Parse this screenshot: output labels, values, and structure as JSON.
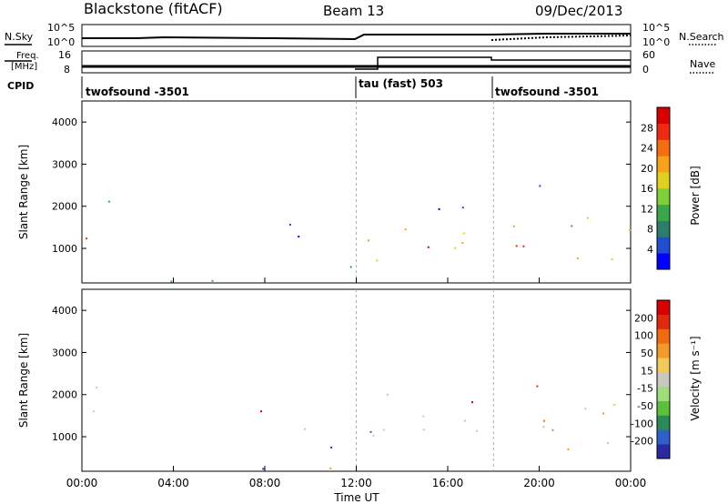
{
  "header": {
    "station": "Blackstone (fitACF)",
    "beam": "Beam 13",
    "date": "09/Dec/2013"
  },
  "noise_panel": {
    "left_label": "N.Sky",
    "right_label": "N.Search",
    "left_ticks": [
      "10^5",
      "10^0"
    ],
    "right_ticks": [
      "10^5",
      "10^0"
    ],
    "right_legend_line": "solid",
    "search_legend_line": "dotted"
  },
  "freq_panel": {
    "left_label_1": "Freq.",
    "left_label_2": "[MHz]",
    "right_label": "Nave",
    "left_ticks": [
      "16",
      "8"
    ],
    "right_ticks": [
      "60",
      "0"
    ],
    "nave_values": [
      {
        "from": "00:00",
        "to": "12:00",
        "nave": 20
      },
      {
        "from": "12:00",
        "to": "18:00",
        "nave": 45
      },
      {
        "from": "18:00",
        "to": "24:00",
        "nave": 35
      }
    ]
  },
  "cpid_panel": {
    "label": "CPID",
    "segments": [
      {
        "text": "twofsound -3501",
        "start_hour": 0
      },
      {
        "text": "tau (fast) 503",
        "start_hour": 12
      },
      {
        "text": "twofsound -3501",
        "start_hour": 18
      }
    ]
  },
  "chart_data": [
    {
      "type": "heatmap",
      "quantity": "Power",
      "ylabel": "Slant Range [km]",
      "yticks": [
        1000,
        2000,
        3000,
        4000
      ],
      "ylim": [
        180,
        4500
      ],
      "xlim_hours": [
        0,
        24
      ],
      "colorbar": {
        "label": "Power [dB]",
        "ticks": [
          "28",
          "24",
          "20",
          "16",
          "12",
          "8",
          "4"
        ],
        "colors": [
          "#0000ff",
          "#1f4fd0",
          "#2e7d6a",
          "#3aa84a",
          "#7fcf3a",
          "#e0d020",
          "#f7a21a",
          "#f46d12",
          "#ee2a10",
          "#d80000"
        ]
      }
    },
    {
      "type": "heatmap",
      "quantity": "Velocity",
      "ylabel": "Slant Range [km]",
      "yticks": [
        1000,
        2000,
        3000,
        4000
      ],
      "ylim": [
        180,
        4500
      ],
      "xlim_hours": [
        0,
        24
      ],
      "xlabel": "Time UT",
      "xticks": [
        "00:00",
        "04:00",
        "08:00",
        "12:00",
        "16:00",
        "20:00",
        "00:00"
      ],
      "colorbar": {
        "label": "Velocity [m s⁻¹]",
        "ticks": [
          "200",
          "100",
          "50",
          "15",
          "-15",
          "-50",
          "-100",
          "-200"
        ],
        "colors": [
          "#2a2aa0",
          "#2f5fc8",
          "#2b8a5a",
          "#5dbf3a",
          "#9fdc7a",
          "#c8c8c0",
          "#f2c95a",
          "#f39a2a",
          "#f06a10",
          "#e02a10",
          "#d80000"
        ]
      }
    }
  ]
}
